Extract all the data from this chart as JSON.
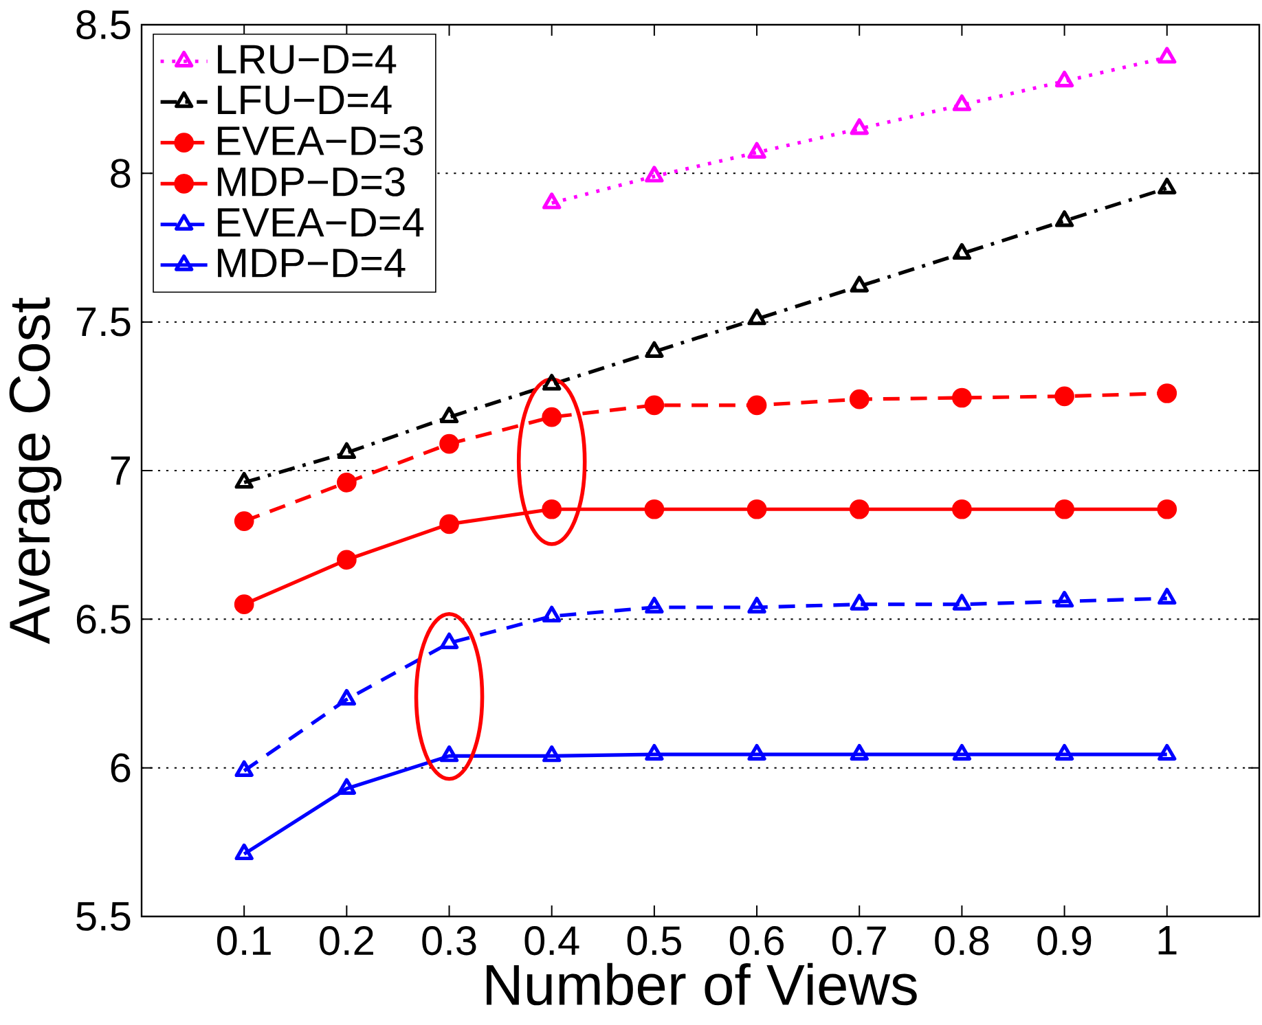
{
  "chart_data": {
    "type": "line",
    "xlabel": "Number of Views",
    "ylabel": "Average Cost",
    "x": [
      0.1,
      0.2,
      0.3,
      0.4,
      0.5,
      0.6,
      0.7,
      0.8,
      0.9,
      1
    ],
    "xlim": [
      0,
      1.09
    ],
    "ylim": [
      5.5,
      8.5
    ],
    "xticks": [
      0.1,
      0.2,
      0.3,
      0.4,
      0.5,
      0.6,
      0.7,
      0.8,
      0.9,
      1
    ],
    "yticks": [
      5.5,
      6,
      6.5,
      7,
      7.5,
      8,
      8.5
    ],
    "grid": "y",
    "legend": "top left",
    "series": [
      {
        "name": "LRU−D=4",
        "color": "#ff00ff",
        "marker": "triangle",
        "line_style": "dotted",
        "values": [
          null,
          null,
          null,
          7.9,
          7.99,
          8.07,
          8.15,
          8.23,
          8.31,
          8.39
        ]
      },
      {
        "name": "LFU−D=4",
        "color": "#000000",
        "marker": "triangle",
        "line_style": "dashdot",
        "values": [
          6.96,
          7.06,
          7.18,
          7.29,
          7.4,
          7.51,
          7.62,
          7.73,
          7.84,
          7.95
        ]
      },
      {
        "name": "EVEA−D=3",
        "color": "#ff0000",
        "marker": "circle",
        "line_style": "dashed",
        "values": [
          6.83,
          6.96,
          7.09,
          7.18,
          7.22,
          7.22,
          7.24,
          7.245,
          7.25,
          7.26
        ]
      },
      {
        "name": "MDP−D=3",
        "color": "#ff0000",
        "marker": "circle",
        "line_style": "solid",
        "values": [
          6.55,
          6.7,
          6.82,
          6.87,
          6.87,
          6.87,
          6.87,
          6.87,
          6.87,
          6.87
        ]
      },
      {
        "name": "EVEA−D=4",
        "color": "#0000ff",
        "marker": "triangle",
        "line_style": "dashed",
        "values": [
          5.99,
          6.23,
          6.42,
          6.51,
          6.54,
          6.54,
          6.55,
          6.55,
          6.56,
          6.57
        ]
      },
      {
        "name": "MDP−D=4",
        "color": "#0000ff",
        "marker": "triangle",
        "line_style": "solid",
        "values": [
          5.71,
          5.93,
          6.04,
          6.04,
          6.045,
          6.045,
          6.045,
          6.045,
          6.045,
          6.045
        ]
      }
    ]
  }
}
